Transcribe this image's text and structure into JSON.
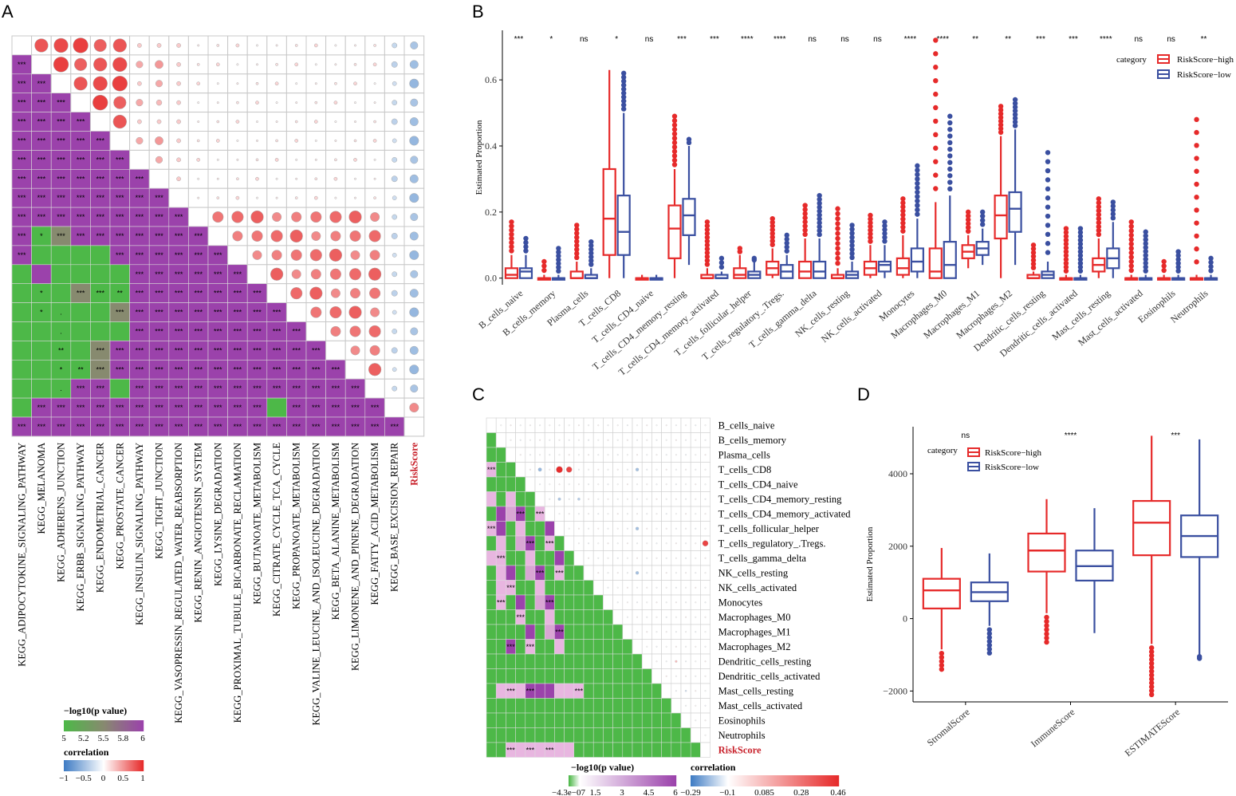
{
  "panels": {
    "A": "A",
    "B": "B",
    "C": "C",
    "D": "D"
  },
  "colors": {
    "purple": "#9b42ab",
    "green": "#4db848",
    "grey": "#878a6f",
    "red": "#e62a2a",
    "blue": "#3a4fa0",
    "light_green": "#8ed289",
    "pink": "#e8b6e0"
  },
  "panel_a": {
    "labels": [
      "KEGG_ADIPOCYTOKINE_SIGNALING_PATHWAY",
      "KEGG_MELANOMA",
      "KEGG_ADHERENS_JUNCTION",
      "KEGG_ERBB_SIGNALING_PATHWAY",
      "KEGG_ENDOMETRIAL_CANCER",
      "KEGG_PROSTATE_CANCER",
      "KEGG_INSULIN_SIGNALING_PATHWAY",
      "KEGG_TIGHT_JUNCTION",
      "KEGG_VASOPRESSIN_REGULATED_WATER_REABSORPTION",
      "KEGG_RENIN_ANGIOTENSIN_SYSTEM",
      "KEGG_LYSINE_DEGRADATION",
      "KEGG_PROXIMAL_TUBULE_BICARBONATE_RECLAMATION",
      "KEGG_BUTANOATE_METABOLISM",
      "KEGG_CITRATE_CYCLE_TCA_CYCLE",
      "KEGG_PROPANOATE_METABOLISM",
      "KEGG_VALINE_LEUCINE_AND_ISOLEUCINE_DEGRADATION",
      "KEGG_BETA_ALANINE_METABOLISM",
      "KEGG_LIMONENE_AND_PINENE_DEGRADATION",
      "KEGG_FATTY_ACID_METABOLISM",
      "KEGG_BASE_EXCISION_REPAIR",
      "RiskScore"
    ],
    "legend_p_title": "−log10(p value)",
    "legend_p_ticks": [
      "5",
      "5.2",
      "5.5",
      "5.8",
      "6"
    ],
    "legend_c_title": "correlation",
    "legend_c_ticks": [
      "−1",
      "−0.5",
      "0",
      "0.5",
      "1"
    ]
  },
  "chart_data": [
    {
      "type": "box",
      "panel": "B",
      "ylabel": "Estimated Proportion",
      "ylim": [
        -0.02,
        0.75
      ],
      "yticks": [
        "0.0",
        "0.2",
        "0.4",
        "0.6"
      ],
      "legend_title": "category",
      "legend": [
        "RiskScore−high",
        "RiskScore−low"
      ],
      "categories": [
        "B_cells_naive",
        "B_cells_memory",
        "Plasma_cells",
        "T_cells_CD8",
        "T_cells_CD4_naive",
        "T_cells_CD4_memory_resting",
        "T_cells_CD4_memory_activated",
        "T_cells_follicular_helper",
        "T_cells_regulatory_.Tregs.",
        "T_cells_gamma_delta",
        "NK_cells_resting",
        "NK_cells_activated",
        "Monocytes",
        "Macrophages_M0",
        "Macrophages_M1",
        "Macrophages_M2",
        "Dendritic_cells_resting",
        "Dendritic_cells_activated",
        "Mast_cells_resting",
        "Mast_cells_activated",
        "Eosinophils",
        "Neutrophils"
      ],
      "significance": [
        "***",
        "*",
        "ns",
        "*",
        "ns",
        "***",
        "***",
        "****",
        "****",
        "ns",
        "ns",
        "ns",
        "****",
        "****",
        "**",
        "**",
        "***",
        "***",
        "****",
        "ns",
        "ns",
        "**"
      ],
      "series": [
        {
          "name": "RiskScore−high",
          "q1": [
            0.0,
            0.0,
            0.0,
            0.07,
            0.0,
            0.06,
            0.0,
            0.0,
            0.01,
            0.0,
            0.0,
            0.01,
            0.01,
            0.0,
            0.06,
            0.12,
            0.0,
            0.0,
            0.02,
            0.0,
            0.0,
            0.0
          ],
          "median": [
            0.01,
            0.0,
            0.0,
            0.18,
            0.0,
            0.15,
            0.0,
            0.01,
            0.03,
            0.02,
            0.0,
            0.03,
            0.03,
            0.02,
            0.08,
            0.19,
            0.0,
            0.0,
            0.04,
            0.0,
            0.0,
            0.0
          ],
          "q3": [
            0.03,
            0.0,
            0.02,
            0.33,
            0.0,
            0.22,
            0.01,
            0.03,
            0.05,
            0.05,
            0.01,
            0.05,
            0.06,
            0.09,
            0.1,
            0.25,
            0.01,
            0.0,
            0.06,
            0.0,
            0.0,
            0.0
          ],
          "wlo": [
            0.0,
            0.0,
            0.0,
            0.0,
            0.0,
            0.0,
            0.0,
            0.0,
            0.0,
            0.0,
            0.0,
            0.0,
            0.0,
            0.0,
            0.03,
            0.0,
            0.0,
            0.0,
            0.0,
            0.0,
            0.0,
            0.0
          ],
          "whi": [
            0.07,
            0.01,
            0.05,
            0.63,
            0.01,
            0.33,
            0.03,
            0.07,
            0.09,
            0.12,
            0.03,
            0.1,
            0.13,
            0.23,
            0.13,
            0.43,
            0.02,
            0.01,
            0.12,
            0.01,
            0.01,
            0.01
          ],
          "outmax": [
            0.17,
            0.05,
            0.16,
            0.63,
            0.01,
            0.49,
            0.17,
            0.09,
            0.18,
            0.22,
            0.21,
            0.19,
            0.24,
            0.72,
            0.2,
            0.52,
            0.1,
            0.15,
            0.24,
            0.17,
            0.05,
            0.48
          ]
        },
        {
          "name": "RiskScore−low",
          "q1": [
            0.0,
            0.0,
            0.0,
            0.07,
            0.0,
            0.13,
            0.0,
            0.0,
            0.0,
            0.0,
            0.0,
            0.02,
            0.02,
            0.0,
            0.07,
            0.14,
            0.0,
            0.0,
            0.03,
            0.0,
            0.0,
            0.0
          ],
          "median": [
            0.02,
            0.0,
            0.0,
            0.14,
            0.0,
            0.19,
            0.0,
            0.01,
            0.02,
            0.02,
            0.01,
            0.04,
            0.05,
            0.04,
            0.09,
            0.21,
            0.01,
            0.0,
            0.06,
            0.0,
            0.0,
            0.0
          ],
          "q3": [
            0.03,
            0.0,
            0.01,
            0.25,
            0.0,
            0.24,
            0.01,
            0.02,
            0.04,
            0.05,
            0.02,
            0.05,
            0.09,
            0.11,
            0.11,
            0.26,
            0.02,
            0.0,
            0.09,
            0.0,
            0.0,
            0.0
          ],
          "wlo": [
            0.0,
            0.0,
            0.0,
            0.0,
            0.0,
            0.04,
            0.0,
            0.0,
            0.0,
            0.0,
            0.0,
            0.0,
            0.0,
            0.0,
            0.04,
            0.04,
            0.0,
            0.0,
            0.0,
            0.0,
            0.0,
            0.0
          ],
          "whi": [
            0.07,
            0.01,
            0.03,
            0.5,
            0.01,
            0.4,
            0.02,
            0.05,
            0.07,
            0.12,
            0.05,
            0.1,
            0.18,
            0.25,
            0.15,
            0.45,
            0.05,
            0.01,
            0.17,
            0.01,
            0.01,
            0.01
          ],
          "outmax": [
            0.12,
            0.09,
            0.11,
            0.62,
            0.01,
            0.42,
            0.06,
            0.06,
            0.13,
            0.25,
            0.16,
            0.17,
            0.34,
            0.49,
            0.2,
            0.54,
            0.38,
            0.15,
            0.23,
            0.14,
            0.08,
            0.06
          ]
        }
      ]
    },
    {
      "type": "heatmap",
      "panel": "C",
      "labels": [
        "B_cells_naive",
        "B_cells_memory",
        "Plasma_cells",
        "T_cells_CD8",
        "T_cells_CD4_naive",
        "T_cells_CD4_memory_resting",
        "T_cells_CD4_memory_activated",
        "T_cells_follicular_helper",
        "T_cells_regulatory_.Tregs.",
        "T_cells_gamma_delta",
        "NK_cells_resting",
        "NK_cells_activated",
        "Monocytes",
        "Macrophages_M0",
        "Macrophages_M1",
        "Macrophages_M2",
        "Dendritic_cells_resting",
        "Dendritic_cells_activated",
        "Mast_cells_resting",
        "Mast_cells_activated",
        "Eosinophils",
        "Neutrophils",
        "RiskScore"
      ],
      "legend_p_title": "−log10(p value)",
      "legend_p_ticks": [
        "−4.3e−07",
        "1.5",
        "3",
        "4.5",
        "6"
      ],
      "legend_c_title": "correlation",
      "legend_c_ticks": [
        "−0.29",
        "−0.1",
        "0.085",
        "0.28",
        "0.46"
      ]
    },
    {
      "type": "box",
      "panel": "D",
      "ylabel": "Estimated Proportion",
      "ylim": [
        -2300,
        5300
      ],
      "yticks": [
        "−2000",
        "0",
        "2000",
        "4000"
      ],
      "legend_title": "category",
      "legend": [
        "RiskScore−high",
        "RiskScore−low"
      ],
      "categories": [
        "StromalScore",
        "ImmuneScore",
        "ESTIMATEScore"
      ],
      "significance": [
        "ns",
        "****",
        "***"
      ],
      "series": [
        {
          "name": "RiskScore−high",
          "q1": [
            280,
            1300,
            1750
          ],
          "median": [
            780,
            1880,
            2650
          ],
          "q3": [
            1100,
            2350,
            3250
          ],
          "wlo": [
            -850,
            150,
            -700
          ],
          "whi": [
            1950,
            3300,
            5050
          ],
          "outmin": [
            -1400,
            -650,
            -2100
          ]
        },
        {
          "name": "RiskScore−low",
          "q1": [
            480,
            1050,
            1700
          ],
          "median": [
            730,
            1450,
            2280
          ],
          "q3": [
            1000,
            1880,
            2850
          ],
          "wlo": [
            -200,
            -400,
            -1000
          ],
          "whi": [
            1800,
            3050,
            4950
          ],
          "outmin": [
            -950,
            -400,
            -1100
          ]
        }
      ]
    }
  ]
}
